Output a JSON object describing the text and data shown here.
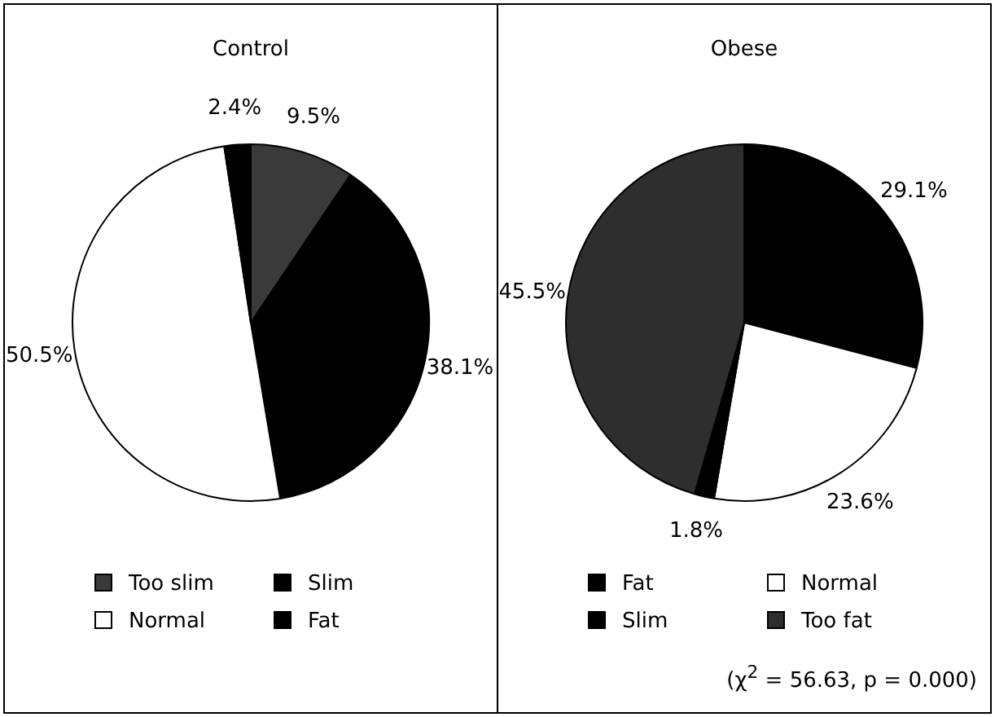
{
  "chart_data": [
    {
      "type": "pie",
      "title": "Control",
      "categories": [
        "Too slim",
        "Slim",
        "Normal",
        "Fat"
      ],
      "values": [
        9.5,
        38.1,
        50.5,
        2.4
      ],
      "colors": [
        "#3a3a3a",
        "#000000",
        "#ffffff",
        "#000000"
      ],
      "value_labels": [
        "9.5%",
        "38.1%",
        "50.5%",
        "2.4%"
      ],
      "legend": "bottom"
    },
    {
      "type": "pie",
      "title": "Obese",
      "categories": [
        "Fat",
        "Normal",
        "Slim",
        "Too fat"
      ],
      "values": [
        29.1,
        23.6,
        1.8,
        45.5
      ],
      "colors": [
        "#000000",
        "#ffffff",
        "#000000",
        "#2e2e2e"
      ],
      "value_labels": [
        "29.1%",
        "23.6%",
        "1.8%",
        "45.5%"
      ],
      "legend": "bottom",
      "annotations": [
        "(χ$^{2}$ = 56.63, p = 0.000)"
      ]
    }
  ]
}
